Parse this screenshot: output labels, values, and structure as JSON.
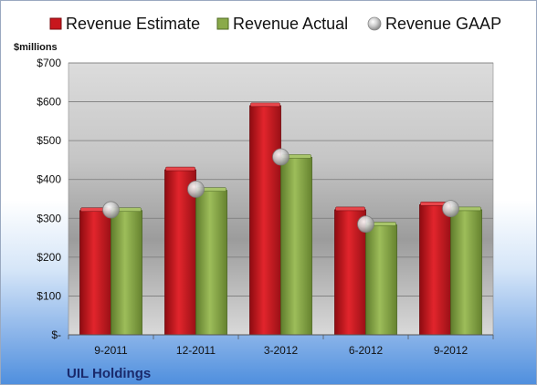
{
  "company": "UIL Holdings",
  "chart_data": {
    "type": "bar",
    "units_label": "$millions",
    "categories": [
      "9-2011",
      "12-2011",
      "3-2012",
      "6-2012",
      "9-2012"
    ],
    "series": [
      {
        "name": "Revenue Estimate",
        "kind": "bar",
        "color": "#c8161d",
        "values": [
          320,
          425,
          590,
          322,
          335
        ]
      },
      {
        "name": "Revenue Actual",
        "kind": "bar",
        "color": "#8aaa4a",
        "values": [
          320,
          372,
          457,
          283,
          322
        ]
      },
      {
        "name": "Revenue GAAP",
        "kind": "marker",
        "color": "#b8b8b8",
        "values": [
          322,
          375,
          458,
          285,
          325
        ]
      }
    ],
    "ylim": [
      0,
      700
    ],
    "yticks": [
      {
        "value": 0,
        "label": "$-"
      },
      {
        "value": 100,
        "label": "$100"
      },
      {
        "value": 200,
        "label": "$200"
      },
      {
        "value": 300,
        "label": "$300"
      },
      {
        "value": 400,
        "label": "$400"
      },
      {
        "value": 500,
        "label": "$500"
      },
      {
        "value": 600,
        "label": "$600"
      },
      {
        "value": 700,
        "label": "$700"
      }
    ],
    "grid": true,
    "legend_position": "top"
  }
}
